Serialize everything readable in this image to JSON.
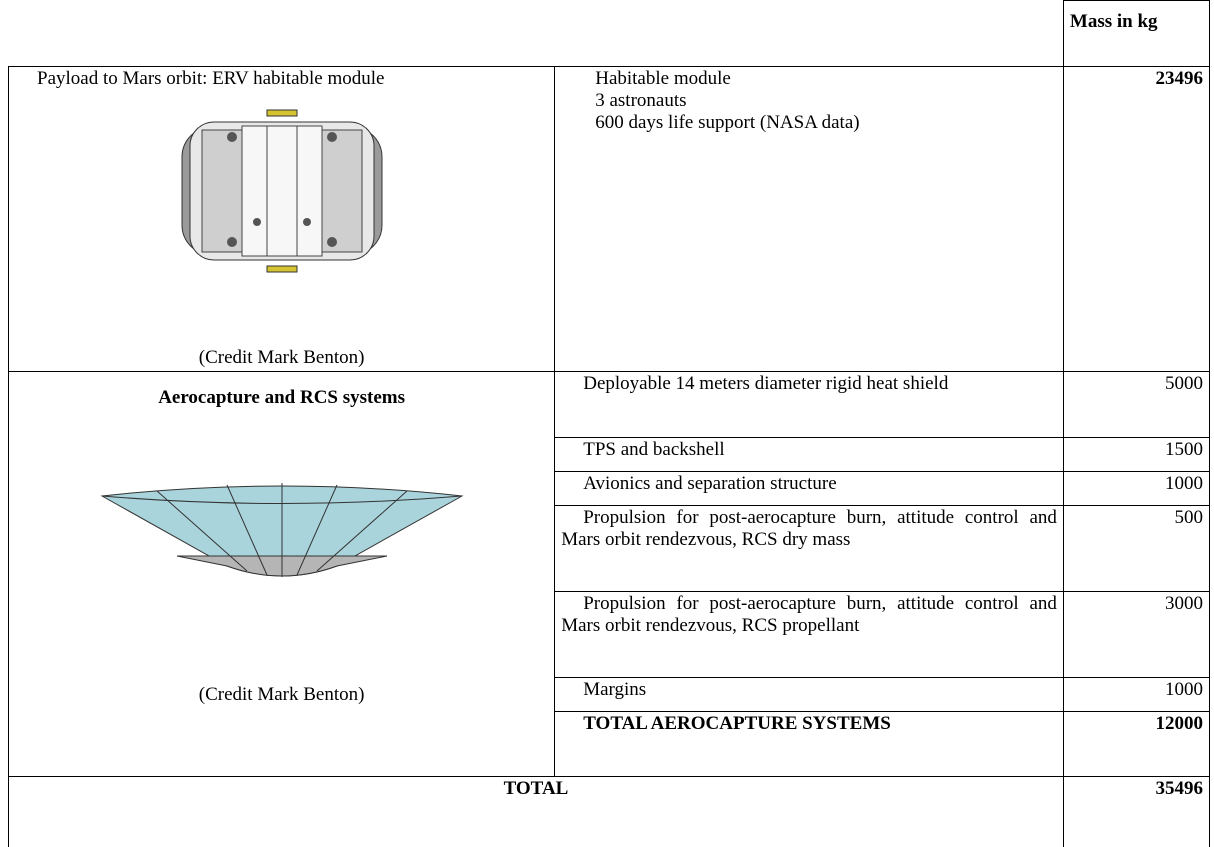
{
  "header": {
    "mass_label": "Mass in kg"
  },
  "payload": {
    "description": "Payload to Mars orbit: ERV habitable module",
    "credit": "(Credit Mark Benton)",
    "items": [
      "Habitable module",
      "3 astronauts",
      "600 days life support (NASA data)"
    ],
    "mass": 23496
  },
  "aerocapture": {
    "title": "Aerocapture and RCS systems",
    "credit": "(Credit Mark Benton)",
    "rows": [
      {
        "item": "Deployable 14 meters diameter rigid heat shield",
        "mass": 5000
      },
      {
        "item": "TPS and backshell",
        "mass": 1500
      },
      {
        "item": "Avionics and separation structure",
        "mass": 1000
      },
      {
        "item": "Propulsion for post-aerocapture burn, attitude control and Mars orbit rendezvous, RCS dry mass",
        "mass": 500
      },
      {
        "item": "Propulsion for post-aerocapture burn, attitude control and Mars orbit rendezvous, RCS propellant",
        "mass": 3000
      },
      {
        "item": "Margins",
        "mass": 1000
      }
    ],
    "total": {
      "item": "TOTAL AEROCAPTURE SYSTEMS",
      "mass": 12000
    }
  },
  "total": {
    "label": "TOTAL",
    "mass": 35496
  }
}
